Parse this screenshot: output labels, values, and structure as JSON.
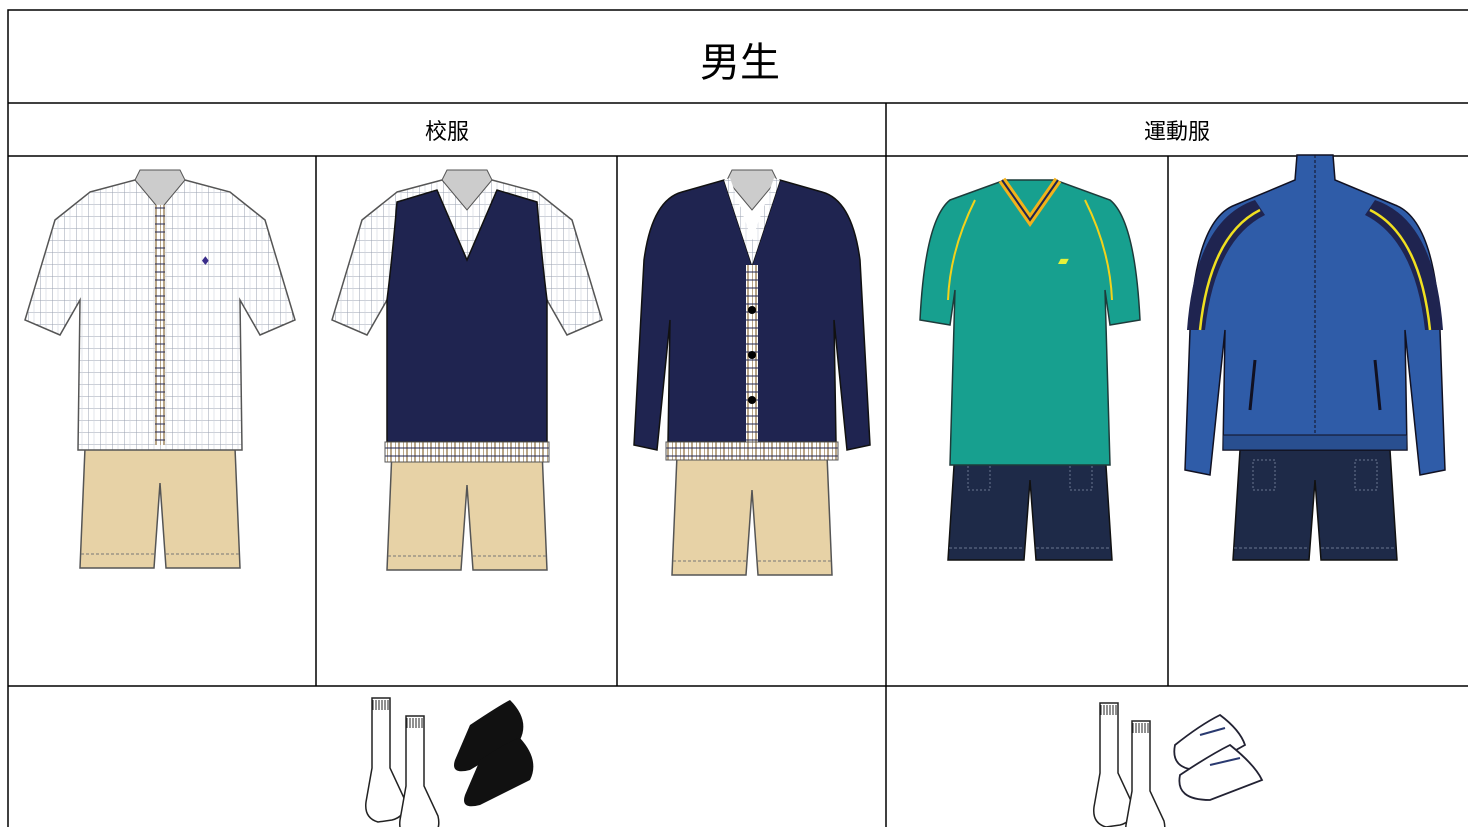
{
  "header": {
    "title": "男生"
  },
  "table": {
    "columns": [
      "校服",
      "運動服"
    ]
  }
}
